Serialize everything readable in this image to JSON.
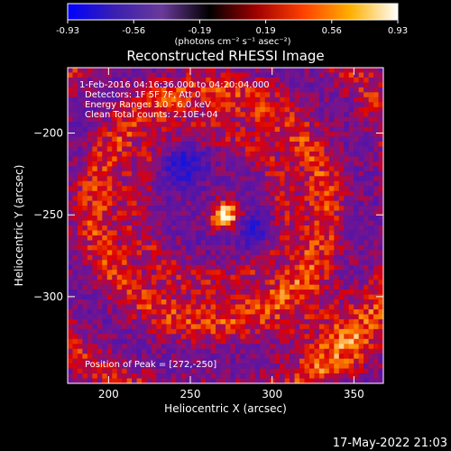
{
  "chart_data": {
    "type": "heatmap",
    "title": "Reconstructed RHESSI Image",
    "xlabel": "Heliocentric X (arcsec)",
    "ylabel": "Heliocentric Y (arcsec)",
    "xlim": [
      175,
      368
    ],
    "ylim": [
      -353,
      -160
    ],
    "x_ticks": [
      200,
      250,
      300,
      350
    ],
    "y_ticks": [
      -200,
      -250,
      -300
    ],
    "grid": false,
    "colorbar": {
      "range": [
        -0.93,
        0.93
      ],
      "ticks": [
        "-0.93",
        "-0.56",
        "-0.19",
        "0.19",
        "0.56",
        "0.93"
      ],
      "label": "(photons cm⁻² s⁻¹ asec⁻²)",
      "colors": [
        "#0000ff",
        "#3a1fb0",
        "#6a3a9a",
        "#000000",
        "#a00000",
        "#ff4000",
        "#ffb000",
        "#ffffff"
      ]
    },
    "features": [
      {
        "kind": "peak",
        "x": 272,
        "y": -250,
        "value": 0.93
      },
      {
        "kind": "trough",
        "x": 245,
        "y": -218,
        "value": -0.8
      },
      {
        "kind": "trough",
        "x": 290,
        "y": -260,
        "value": -0.6
      }
    ]
  },
  "annotations": {
    "time_range": "1-Feb-2016 04:16:36.000 to 04:20:04.000",
    "detectors": "Detectors: 1F 5F 7F, Att 0",
    "energy": "Energy Range: 3.0 - 6.0 keV",
    "clean": "Clean    Total counts: 2.10E+04",
    "peak": "Position of Peak = [272,-250]"
  },
  "footer_date": "17-May-2022 21:03"
}
